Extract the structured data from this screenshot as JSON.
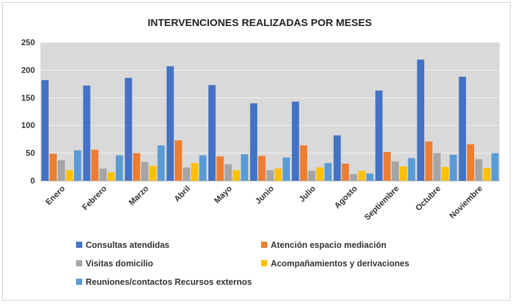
{
  "chart_data": {
    "type": "bar",
    "title": "INTERVENCIONES REALIZADAS POR MESES",
    "xlabel": "",
    "ylabel": "",
    "ylim": [
      0,
      250
    ],
    "yticks": [
      0,
      50,
      100,
      150,
      200,
      250
    ],
    "grid": true,
    "legend_position": "bottom",
    "categories": [
      "Enero",
      "Febrero",
      "Marzo",
      "Abril",
      "Mayo",
      "Junio",
      "Julio",
      "Agosto",
      "Septiembre",
      "Octubre",
      "Noviembre"
    ],
    "series": [
      {
        "name": "Consultas atendidas",
        "color": "#4472C4",
        "values": [
          182,
          172,
          186,
          207,
          173,
          140,
          143,
          82,
          163,
          219,
          188
        ]
      },
      {
        "name": "Atención espacio mediación",
        "color": "#ED7D31",
        "values": [
          49,
          56,
          50,
          73,
          44,
          45,
          64,
          31,
          52,
          71,
          66
        ]
      },
      {
        "name": "Visitas domicilio",
        "color": "#A5A5A5",
        "values": [
          37,
          22,
          34,
          24,
          30,
          19,
          18,
          12,
          35,
          50,
          39
        ]
      },
      {
        "name": "Acompañamientos y derivaciones",
        "color": "#FFC000",
        "values": [
          19,
          15,
          27,
          32,
          19,
          22,
          24,
          18,
          26,
          25,
          23
        ]
      },
      {
        "name": "Reuniones/contactos Recursos externos",
        "color": "#5B9BD5",
        "values": [
          55,
          46,
          64,
          46,
          48,
          42,
          32,
          13,
          41,
          47,
          50
        ]
      }
    ]
  }
}
